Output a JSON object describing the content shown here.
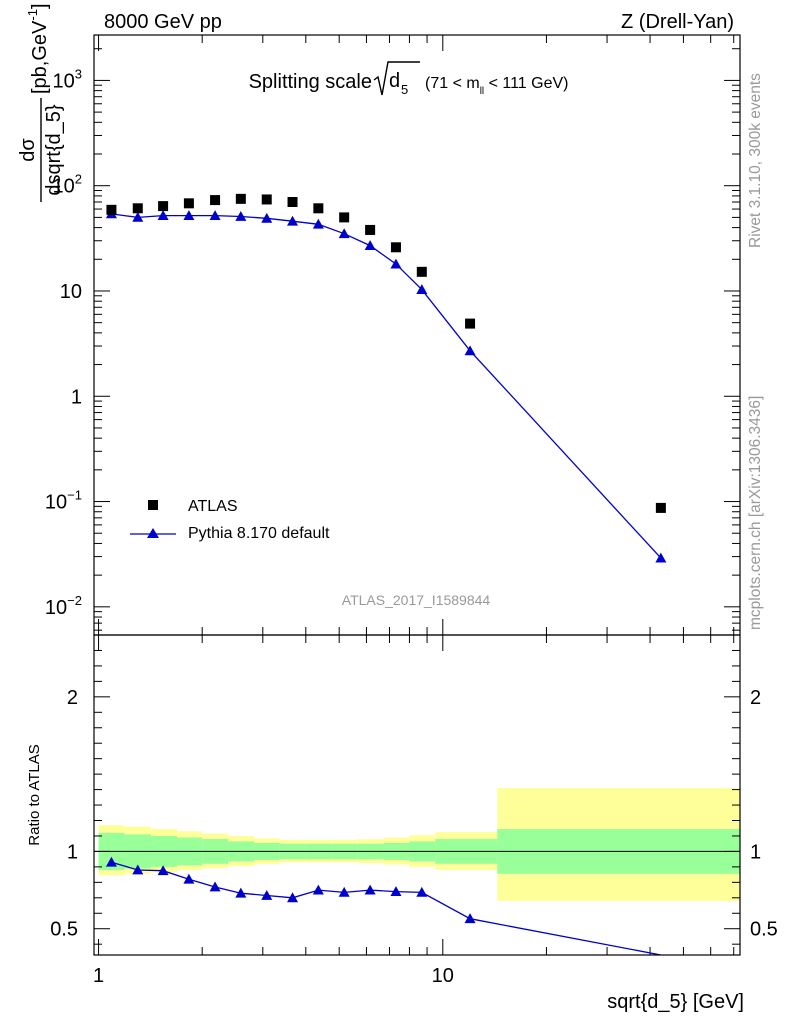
{
  "header": {
    "left": "8000 GeV pp",
    "right": "Z (Drell-Yan)"
  },
  "side": {
    "rivet": "Rivet 3.1.10,  300k events",
    "mcplots": "mcplots.cern.ch [arXiv:1306.3436]"
  },
  "chart_data": [
    {
      "type": "scatter",
      "title": "Splitting scale",
      "title_symbol": "d",
      "title_subscript": "5",
      "title_range_pre": "(71 < m",
      "title_range_sub": "ll",
      "title_range_post": " < 111 GeV)",
      "ylabel_num": "dσ",
      "ylabel_den": "dsqrt{d_5}",
      "ylabel_units_pre": " [pb,GeV",
      "ylabel_units_sup": "-1",
      "ylabel_units_post": "]",
      "xscale": "log",
      "yscale": "log",
      "xlim": [
        0.97,
        73
      ],
      "ylim": [
        0.0054,
        2700
      ],
      "yticks": [
        {
          "value": 1000,
          "base": "10",
          "exp": "3"
        },
        {
          "value": 100,
          "base": "10",
          "exp": "2"
        },
        {
          "value": 10,
          "base": "10",
          "exp": ""
        },
        {
          "value": 1,
          "base": "1",
          "exp": ""
        },
        {
          "value": 0.1,
          "base": "10",
          "exp": "−1"
        },
        {
          "value": 0.01,
          "base": "10",
          "exp": "−2"
        }
      ],
      "legend_position": "bottom-left",
      "watermark": "ATLAS_2017_I1589844",
      "series": [
        {
          "name": "ATLAS",
          "marker": "square",
          "color": "#000000",
          "x": [
            1.09,
            1.3,
            1.54,
            1.83,
            2.18,
            2.59,
            3.08,
            3.66,
            4.35,
            5.17,
            6.15,
            7.31,
            8.69,
            12.0,
            43.0
          ],
          "y": [
            59,
            61,
            64,
            68,
            73,
            75,
            74,
            70,
            61,
            50,
            38,
            26,
            15.2,
            4.9,
            0.087
          ]
        },
        {
          "name": "Pythia 8.170 default",
          "marker": "triangle",
          "color": "#0000cc",
          "x": [
            1.09,
            1.3,
            1.54,
            1.83,
            2.18,
            2.59,
            3.08,
            3.66,
            4.35,
            5.17,
            6.15,
            7.31,
            8.69,
            12.0,
            43.0
          ],
          "y": [
            54,
            50,
            52,
            52,
            52,
            51,
            49,
            46,
            43,
            35,
            27,
            18,
            10.3,
            2.7,
            0.029
          ]
        }
      ]
    },
    {
      "type": "line",
      "xlabel": "sqrt{d_5} [GeV]",
      "ylabel": "Ratio to ATLAS",
      "xscale": "log",
      "xlim": [
        0.97,
        73
      ],
      "ylim": [
        0.33,
        2.4
      ],
      "yticks": [
        "0.5",
        "1",
        "2"
      ],
      "xticks": [
        "1",
        "10"
      ],
      "bands": {
        "edges": [
          1.0,
          1.19,
          1.42,
          1.69,
          2.0,
          2.38,
          2.83,
          3.36,
          4.0,
          4.76,
          5.66,
          6.73,
          8.0,
          9.51,
          14.4,
          73
        ],
        "inner_color": "#99ff99",
        "outer_color": "#ffff99",
        "inner_lo": [
          0.88,
          0.89,
          0.9,
          0.91,
          0.92,
          0.935,
          0.945,
          0.95,
          0.95,
          0.95,
          0.95,
          0.945,
          0.935,
          0.92,
          0.855
        ],
        "inner_hi": [
          1.12,
          1.11,
          1.1,
          1.09,
          1.08,
          1.065,
          1.055,
          1.05,
          1.05,
          1.05,
          1.05,
          1.055,
          1.065,
          1.08,
          1.145
        ],
        "outer_lo": [
          0.845,
          0.855,
          0.865,
          0.88,
          0.89,
          0.905,
          0.92,
          0.93,
          0.93,
          0.93,
          0.925,
          0.915,
          0.9,
          0.88,
          0.68
        ],
        "outer_hi": [
          1.17,
          1.16,
          1.145,
          1.13,
          1.115,
          1.1,
          1.085,
          1.075,
          1.075,
          1.075,
          1.08,
          1.09,
          1.105,
          1.125,
          1.41
        ]
      },
      "series": [
        {
          "name": "Pythia 8.170 default",
          "color": "#0000cc",
          "x": [
            1.09,
            1.3,
            1.54,
            1.83,
            2.18,
            2.59,
            3.08,
            3.66,
            4.35,
            5.17,
            6.15,
            7.31,
            8.69,
            12.0,
            43.0
          ],
          "y": [
            0.93,
            0.88,
            0.875,
            0.82,
            0.77,
            0.73,
            0.715,
            0.7,
            0.75,
            0.735,
            0.75,
            0.74,
            0.735,
            0.565,
            0.33
          ]
        }
      ]
    }
  ]
}
